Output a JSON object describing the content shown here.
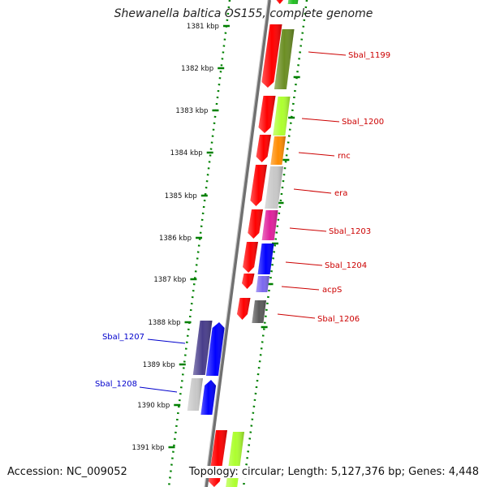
{
  "title": "Shewanella baltica OS155, complete genome",
  "accession": "Accession: NC_009052",
  "topology": "Topology: circular; Length: 5,127,376 bp; Genes: 4,448",
  "colors": {
    "red": "#ff0000",
    "olive": "#6b8e23",
    "lime": "#adff2f",
    "orange": "#ff8c00",
    "lightgray": "#c8c8c8",
    "magenta": "#e0209c",
    "blue": "#0000ff",
    "slateblue": "#7b68ee",
    "dimgray": "#5a5a5a",
    "darkslateblue": "#483d8b",
    "green": "#22c022",
    "tick": "#008000",
    "backbone": "#808080",
    "label_red": "#cc0000",
    "label_blue": "#0000cc"
  },
  "kbp_ticks": [
    "1381 kbp",
    "1382 kbp",
    "1383 kbp",
    "1384 kbp",
    "1385 kbp",
    "1386 kbp",
    "1387 kbp",
    "1388 kbp",
    "1389 kbp",
    "1390 kbp",
    "1391 kbp"
  ],
  "gene_labels": [
    {
      "text": "Sbal_1199",
      "color": "red"
    },
    {
      "text": "Sbal_1200",
      "color": "red"
    },
    {
      "text": "rnc",
      "color": "red"
    },
    {
      "text": "era",
      "color": "red"
    },
    {
      "text": "Sbal_1203",
      "color": "red"
    },
    {
      "text": "Sbal_1204",
      "color": "red"
    },
    {
      "text": "acpS",
      "color": "red"
    },
    {
      "text": "Sbal_1206",
      "color": "red"
    },
    {
      "text": "Sbal_1207",
      "color": "blue"
    },
    {
      "text": "Sbal_1208",
      "color": "blue"
    }
  ]
}
